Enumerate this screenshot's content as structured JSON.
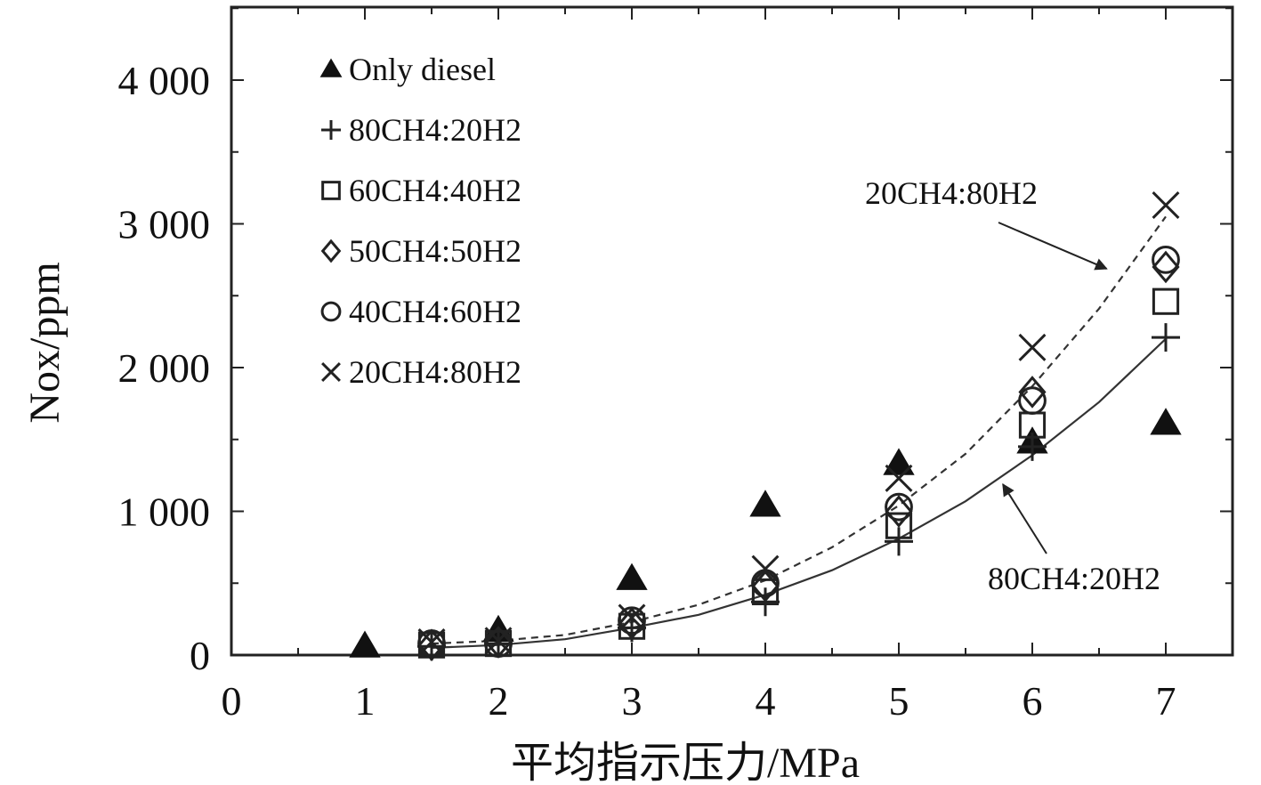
{
  "chart_data": {
    "type": "scatter",
    "xlabel": "平均指示压力/MPa",
    "ylabel": "Nox/ppm",
    "xlim": [
      0,
      7.5
    ],
    "ylim": [
      0,
      4500
    ],
    "x_ticks": [
      0,
      1,
      2,
      3,
      4,
      5,
      6,
      7
    ],
    "x_tick_labels": [
      "0",
      "1",
      "2",
      "3",
      "4",
      "5",
      "6",
      "7"
    ],
    "y_ticks": [
      0,
      1000,
      2000,
      3000,
      4000
    ],
    "y_tick_labels": [
      "0",
      "1 000",
      "2 000",
      "3 000",
      "4 000"
    ],
    "legend_position": "top-left",
    "series": [
      {
        "name": "Only diesel",
        "marker": "triangle-filled",
        "x": [
          1,
          2,
          3,
          4,
          5,
          6,
          7
        ],
        "y": [
          60,
          170,
          530,
          1040,
          1330,
          1480,
          1610
        ]
      },
      {
        "name": "80CH4:20H2",
        "marker": "plus",
        "x": [
          1.5,
          2,
          3,
          4,
          5,
          6,
          7
        ],
        "y": [
          60,
          80,
          190,
          370,
          790,
          1450,
          2210
        ]
      },
      {
        "name": "60CH4:40H2",
        "marker": "square",
        "x": [
          1.5,
          2,
          3,
          4,
          5,
          6,
          7
        ],
        "y": [
          70,
          80,
          200,
          440,
          900,
          1600,
          2460
        ]
      },
      {
        "name": "50CH4:50H2",
        "marker": "diamond",
        "x": [
          1.5,
          2,
          3,
          4,
          5,
          6,
          7
        ],
        "y": [
          70,
          90,
          220,
          480,
          1000,
          1830,
          2700
        ]
      },
      {
        "name": "40CH4:60H2",
        "marker": "circle",
        "x": [
          1.5,
          2,
          3,
          4,
          5,
          6,
          7
        ],
        "y": [
          80,
          80,
          240,
          500,
          1030,
          1770,
          2750
        ]
      },
      {
        "name": "20CH4:80H2",
        "marker": "cross",
        "x": [
          1.5,
          2,
          3,
          4,
          5,
          6,
          7
        ],
        "y": [
          90,
          100,
          260,
          600,
          1230,
          2140,
          3130
        ]
      }
    ],
    "fit_lines": [
      {
        "name": "80CH4:20H2",
        "style": "solid",
        "x": [
          1.5,
          2,
          2.5,
          3,
          3.5,
          4,
          4.5,
          5,
          5.5,
          6,
          6.5,
          7
        ],
        "y": [
          50,
          70,
          110,
          190,
          280,
          420,
          590,
          810,
          1070,
          1390,
          1760,
          2200
        ]
      },
      {
        "name": "20CH4:80H2",
        "style": "dashed",
        "x": [
          1.5,
          2,
          2.5,
          3,
          3.5,
          4,
          4.5,
          5,
          5.5,
          6,
          6.5,
          7
        ],
        "y": [
          80,
          100,
          140,
          230,
          350,
          520,
          750,
          1040,
          1400,
          1870,
          2410,
          3050
        ]
      }
    ],
    "annotations": [
      {
        "text": "20CH4:80H2",
        "target_x": 6.55,
        "target_y": 2700
      },
      {
        "text": "80CH4:20H2",
        "target_x": 5.8,
        "target_y": 1200
      }
    ]
  }
}
